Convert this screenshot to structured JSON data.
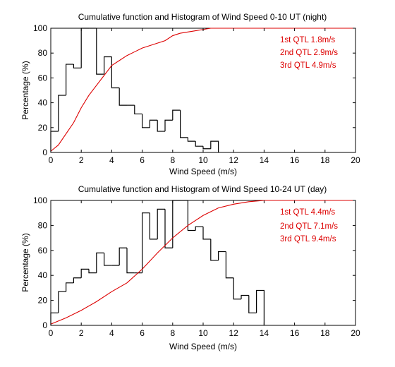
{
  "chart_data": [
    {
      "type": "histogram+line",
      "title": "Cumulative function and Histogram of Wind Speed 0-10 UT (night)",
      "xlabel": "Wind Speed (m/s)",
      "ylabel": "Percentage (%)",
      "xlim": [
        0,
        20
      ],
      "ylim": [
        0,
        100
      ],
      "xticks": [
        "0",
        "2",
        "4",
        "6",
        "8",
        "10",
        "12",
        "14",
        "16",
        "18",
        "20"
      ],
      "yticks": [
        "0",
        "20",
        "40",
        "60",
        "80",
        "100"
      ],
      "grid": false,
      "histogram": {
        "color": "#000000",
        "bin_width": 0.5,
        "bin_starts": [
          0,
          0.5,
          1,
          1.5,
          2,
          2.5,
          3,
          3.5,
          4,
          4.5,
          5,
          5.5,
          6,
          6.5,
          7,
          7.5,
          8,
          8.5,
          9,
          9.5,
          10,
          10.5
        ],
        "values": [
          17,
          46,
          71,
          68,
          100,
          100,
          63,
          77,
          52,
          38,
          38,
          31,
          20,
          26,
          17,
          26,
          34,
          12,
          9,
          5,
          3,
          9
        ]
      },
      "cumulative": {
        "color": "#dd0000",
        "x": [
          0,
          0.5,
          1,
          1.5,
          2,
          2.5,
          3,
          3.5,
          4,
          4.5,
          5,
          5.5,
          6,
          6.5,
          7,
          7.5,
          8,
          8.5,
          9,
          9.5,
          10,
          10.5,
          11,
          12,
          14,
          16,
          18,
          20
        ],
        "y": [
          1,
          6,
          15,
          24,
          36,
          46,
          54,
          62,
          70,
          74,
          78,
          81,
          84,
          86,
          88,
          90,
          94,
          96,
          97,
          98,
          99,
          100,
          100,
          100,
          100,
          100,
          100,
          100
        ]
      },
      "annotations": [
        "1st QTL 1.8m/s",
        "2nd QTL 2.9m/s",
        "3rd QTL 4.9m/s"
      ],
      "annotation_color": "#dd0000"
    },
    {
      "type": "histogram+line",
      "title": "Cumulative function and Histogram of Wind Speed 10-24 UT (day)",
      "xlabel": "Wind Speed (m/s)",
      "ylabel": "Percentage (%)",
      "xlim": [
        0,
        20
      ],
      "ylim": [
        0,
        100
      ],
      "xticks": [
        "0",
        "2",
        "4",
        "6",
        "8",
        "10",
        "12",
        "14",
        "16",
        "18",
        "20"
      ],
      "yticks": [
        "0",
        "20",
        "40",
        "60",
        "80",
        "100"
      ],
      "grid": false,
      "histogram": {
        "color": "#000000",
        "bin_width": 0.5,
        "bin_starts": [
          0,
          0.5,
          1,
          1.5,
          2,
          2.5,
          3,
          3.5,
          4,
          4.5,
          5,
          5.5,
          6,
          6.5,
          7,
          7.5,
          8,
          8.5,
          9,
          9.5,
          10,
          10.5,
          11,
          11.5,
          12,
          12.5,
          13,
          13.5
        ],
        "values": [
          10,
          27,
          34,
          38,
          45,
          42,
          58,
          48,
          48,
          62,
          42,
          42,
          90,
          69,
          93,
          62,
          100,
          100,
          76,
          79,
          69,
          52,
          59,
          38,
          21,
          24,
          10,
          28
        ]
      },
      "cumulative": {
        "color": "#dd0000",
        "x": [
          0,
          1,
          2,
          3,
          4,
          5,
          6,
          7,
          8,
          9,
          10,
          11,
          12,
          13,
          14,
          16,
          18,
          20
        ],
        "y": [
          1,
          6,
          12,
          19,
          27,
          34,
          45,
          58,
          70,
          80,
          88,
          94,
          97,
          99,
          100,
          100,
          100,
          100
        ]
      },
      "annotations": [
        "1st QTL 4.4m/s",
        "2nd QTL 7.1m/s",
        "3rd QTL 9.4m/s"
      ],
      "annotation_color": "#dd0000"
    }
  ]
}
